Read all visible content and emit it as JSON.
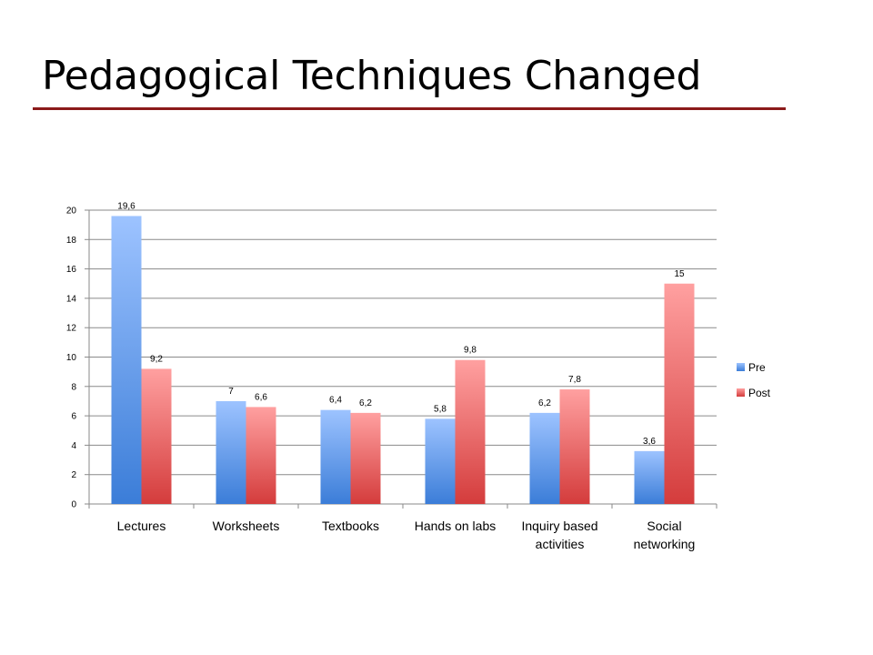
{
  "slide": {
    "title": "Pedagogical Techniques Changed",
    "rule_color": "#8b1a1a"
  },
  "chart_data": {
    "type": "bar",
    "title": "",
    "xlabel": "",
    "ylabel": "",
    "categories": [
      [
        "Lectures"
      ],
      [
        "Worksheets"
      ],
      [
        "Textbooks"
      ],
      [
        "Hands on labs"
      ],
      [
        "Inquiry based",
        "activities"
      ],
      [
        "Social",
        "networking"
      ]
    ],
    "series": [
      {
        "name": "Pre",
        "values": [
          19.6,
          7,
          6.4,
          5.8,
          6.2,
          3.6
        ],
        "labels": [
          "19,6",
          "7",
          "6,4",
          "5,8",
          "6,2",
          "3,6"
        ],
        "color_top": "#9dc3ff",
        "color_bottom": "#3b7dd8"
      },
      {
        "name": "Post",
        "values": [
          9.2,
          6.6,
          6.2,
          9.8,
          7.8,
          15
        ],
        "labels": [
          "9,2",
          "6,6",
          "6,2",
          "9,8",
          "7,8",
          "15"
        ],
        "color_top": "#ffa0a0",
        "color_bottom": "#d43c3c"
      }
    ],
    "ylim": [
      0,
      20
    ],
    "yticks": [
      0,
      2,
      4,
      6,
      8,
      10,
      12,
      14,
      16,
      18,
      20
    ],
    "grid": true,
    "legend_position": "right"
  }
}
